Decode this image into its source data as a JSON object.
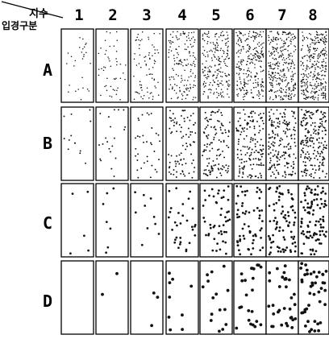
{
  "header": {
    "index_label": "지수",
    "grade_label": "입경구분"
  },
  "columns": [
    "1",
    "2",
    "3",
    "4",
    "5",
    "6",
    "7",
    "8"
  ],
  "rows": [
    "A",
    "B",
    "C",
    "D"
  ],
  "relative_density": [
    [
      0.08,
      0.14,
      0.22,
      0.45,
      0.62,
      0.78,
      0.92,
      1.0
    ],
    [
      0.06,
      0.1,
      0.16,
      0.4,
      0.55,
      0.7,
      0.85,
      1.0
    ],
    [
      0.05,
      0.07,
      0.1,
      0.3,
      0.45,
      0.6,
      0.78,
      1.0
    ],
    [
      0.0,
      0.03,
      0.05,
      0.16,
      0.28,
      0.42,
      0.6,
      0.85
    ]
  ],
  "relative_dot_size": [
    0.18,
    0.32,
    0.62,
    1.0
  ],
  "colors": {
    "line": "#000000",
    "dot": "#111111",
    "background": "#ffffff"
  }
}
